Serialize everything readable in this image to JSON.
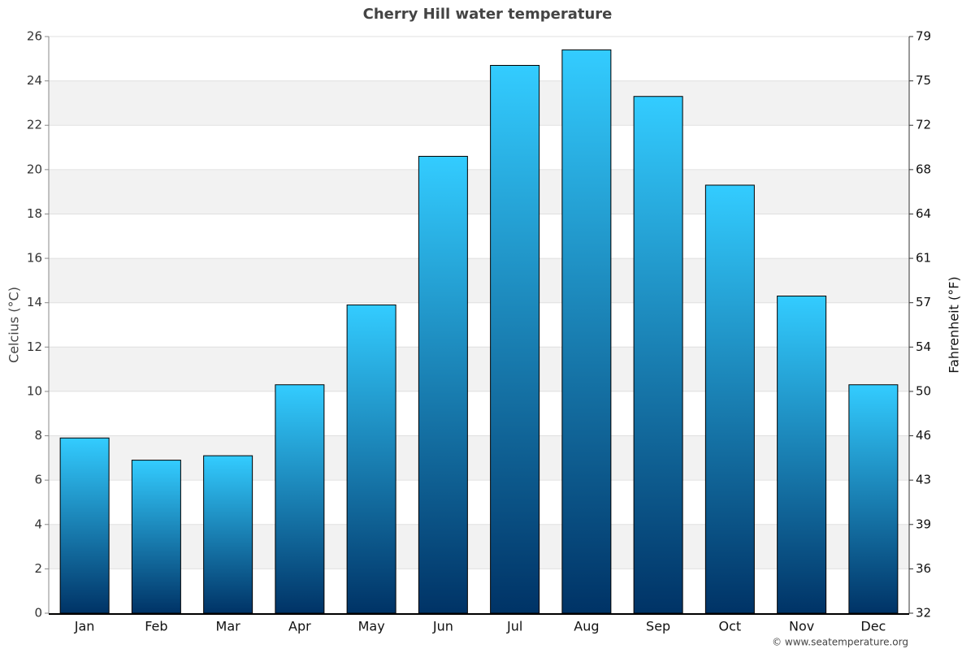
{
  "chart_data": {
    "type": "bar",
    "title": "Cherry Hill water temperature",
    "categories": [
      "Jan",
      "Feb",
      "Mar",
      "Apr",
      "May",
      "Jun",
      "Jul",
      "Aug",
      "Sep",
      "Oct",
      "Nov",
      "Dec"
    ],
    "values": [
      7.9,
      6.9,
      7.1,
      10.3,
      13.9,
      20.6,
      24.7,
      25.4,
      23.3,
      19.3,
      14.3,
      10.3
    ],
    "color": [
      "#33ccff",
      "#003366"
    ],
    "ylabel": "Celcius (°C)",
    "y2label": "Fahrenheit (°F)",
    "ylim": [
      0,
      26
    ],
    "yticks": [
      0,
      2,
      4,
      6,
      8,
      10,
      12,
      14,
      16,
      18,
      20,
      22,
      24,
      26
    ],
    "y2lim": [
      32,
      78.8
    ],
    "y2ticks": [
      32,
      {
        "value": 35.6,
        "label": "36"
      },
      {
        "value": 39.2,
        "label": "39"
      },
      {
        "value": 42.8,
        "label": "43"
      },
      {
        "value": 46.4,
        "label": "46"
      },
      50,
      {
        "value": 53.6,
        "label": "54"
      },
      {
        "value": 57.2,
        "label": "57"
      },
      {
        "value": 60.8,
        "label": "61"
      },
      {
        "value": 64.4,
        "label": "64"
      },
      68,
      {
        "value": 71.6,
        "label": "72"
      },
      {
        "value": 75.2,
        "label": "75"
      },
      {
        "value": 78.8,
        "label": "79"
      }
    ],
    "grid": true,
    "credit": "© www.seatemperature.org"
  }
}
